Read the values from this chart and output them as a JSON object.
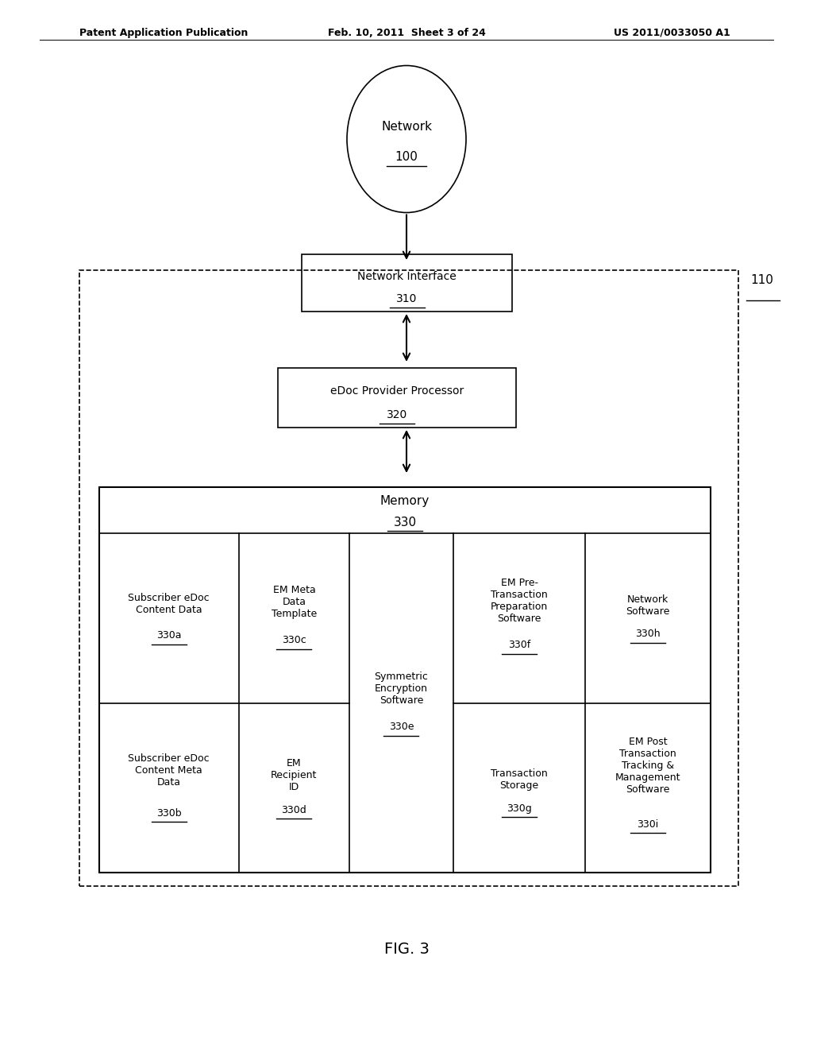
{
  "title_left": "Patent Application Publication",
  "title_mid": "Feb. 10, 2011  Sheet 3 of 24",
  "title_right": "US 2011/0033050 A1",
  "fig_label": "FIG. 3",
  "network_label": "Network",
  "network_id": "100",
  "outer_box_id": "110",
  "ni_label": "Network Interface",
  "ni_id": "310",
  "proc_label": "eDoc Provider Processor",
  "proc_id": "320",
  "mem_label": "Memory",
  "mem_id": "330",
  "bg_color": "#ffffff",
  "box_edge_color": "#000000",
  "text_color": "#000000"
}
